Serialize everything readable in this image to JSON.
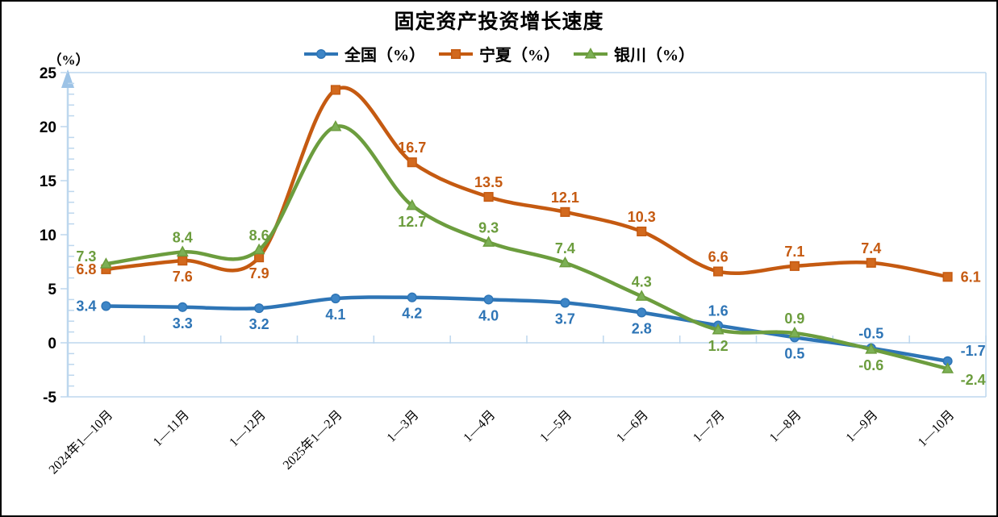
{
  "chart_data": {
    "type": "line",
    "title": "固定资产投资增长速度",
    "y_axis_label": "（%）",
    "ylim": [
      -5,
      25
    ],
    "y_ticks": [
      25,
      20,
      15,
      10,
      5,
      0,
      -5
    ],
    "grid": false,
    "smooth": true,
    "legend_position": "top",
    "axis_color": "#BDD7EE",
    "arrow_color": "#9DC3E6",
    "categories": [
      "2024年1—10月",
      "1—11月",
      "1—12月",
      "2025年1—2月",
      "1—3月",
      "1—4月",
      "1—5月",
      "1—6月",
      "1—7月",
      "1—8月",
      "1—9月",
      "1—10月"
    ],
    "series": [
      {
        "id": "national",
        "name": "全国（%）",
        "color": "#2E75B6",
        "marker_fill": "#3E86C7",
        "marker": "circle",
        "values": [
          3.4,
          3.3,
          3.2,
          4.1,
          4.2,
          4.0,
          3.7,
          2.8,
          1.6,
          0.5,
          -0.5,
          -1.7
        ],
        "point_labels": [
          "3.4",
          "3.3",
          "3.2",
          "4.1",
          "4.2",
          "4.0",
          "3.7",
          "2.8",
          "1.6",
          "0.5",
          "-0.5",
          "-1.7"
        ],
        "label_sides": [
          "left",
          "below",
          "below",
          "below",
          "below",
          "below",
          "below",
          "below",
          "above",
          "below",
          "above",
          "right-above"
        ]
      },
      {
        "id": "ningxia",
        "name": "宁夏（%）",
        "color": "#C55A11",
        "marker_fill": "#D2691E",
        "marker": "square",
        "values": [
          6.8,
          7.6,
          7.9,
          23.4,
          16.7,
          13.5,
          12.1,
          10.3,
          6.6,
          7.1,
          7.4,
          6.1
        ],
        "point_labels": [
          "6.8",
          "7.6",
          "7.9",
          "",
          "16.7",
          "13.5",
          "12.1",
          "10.3",
          "6.6",
          "7.1",
          "7.4",
          "6.1"
        ],
        "label_sides": [
          "left",
          "below",
          "below",
          "",
          "above",
          "above",
          "above",
          "above",
          "above",
          "above",
          "above",
          "right"
        ]
      },
      {
        "id": "yinchuan",
        "name": "银川（%）",
        "color": "#6C9D3E",
        "marker_fill": "#7CB055",
        "marker": "triangle",
        "values": [
          7.3,
          8.4,
          8.6,
          20.0,
          12.7,
          9.3,
          7.4,
          4.3,
          1.2,
          0.9,
          -0.6,
          -2.4
        ],
        "point_labels": [
          "7.3",
          "8.4",
          "8.6",
          "",
          "12.7",
          "9.3",
          "7.4",
          "4.3",
          "1.2",
          "0.9",
          "-0.6",
          "-2.4"
        ],
        "label_sides": [
          "left-above",
          "above",
          "above",
          "",
          "below",
          "above",
          "above",
          "above",
          "below",
          "above",
          "below",
          "right-below"
        ]
      }
    ]
  }
}
